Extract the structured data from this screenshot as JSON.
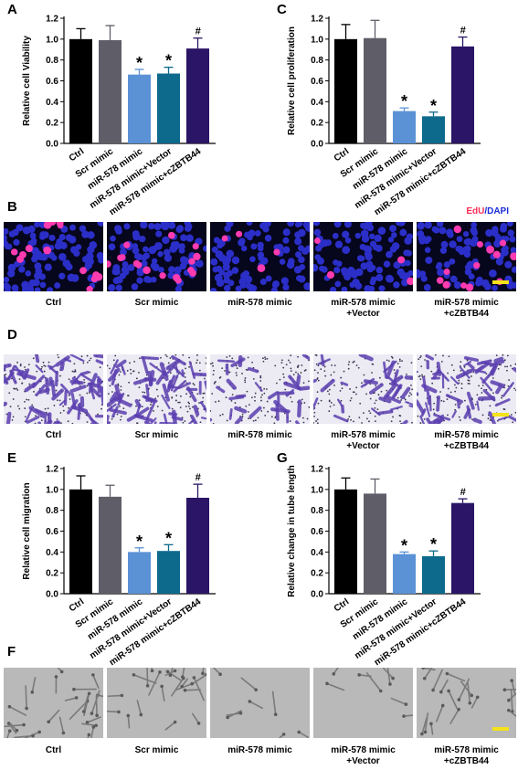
{
  "panels": {
    "A": {
      "letter": "A",
      "ylabel": "Relative cell Viability"
    },
    "C": {
      "letter": "C",
      "ylabel": "Relative cell proliferation"
    },
    "B": {
      "letter": "B",
      "legend_edu": "EdU",
      "legend_sep": "/",
      "legend_dapi": "DAPI"
    },
    "D": {
      "letter": "D"
    },
    "E": {
      "letter": "E",
      "ylabel": "Relative cell migration"
    },
    "G": {
      "letter": "G",
      "ylabel": "Relative change in tube length"
    },
    "F": {
      "letter": "F"
    }
  },
  "image_labels": [
    [
      "Ctrl"
    ],
    [
      "Scr mimic"
    ],
    [
      "miR-578 mimic"
    ],
    [
      "miR-578 mimic",
      "+Vector"
    ],
    [
      "miR-578 mimic",
      "+cZBTB44"
    ]
  ],
  "colors": {
    "ctrl": "#000000",
    "scr": "#5f5e68",
    "mir": "#5b92d6",
    "vector": "#0d6a8c",
    "czbtb": "#2a1566",
    "scalebar": "#f4e21a"
  },
  "chart_data": [
    {
      "id": "A",
      "type": "bar",
      "categories": [
        "Ctrl",
        "Scr mimic",
        "miR-578 mimic",
        "miR-578 mimic+Vector",
        "miR-578 mimic+cZBTB44"
      ],
      "values": [
        1.0,
        0.99,
        0.66,
        0.67,
        0.91
      ],
      "errors": [
        0.1,
        0.14,
        0.05,
        0.06,
        0.1
      ],
      "annotations": [
        "",
        "",
        "*",
        "*",
        "#"
      ],
      "ylabel": "Relative cell Viability",
      "ylim": [
        0,
        1.2
      ],
      "yticks": [
        "0.0",
        "0.2",
        "0.4",
        "0.6",
        "0.8",
        "1.0",
        "1.2"
      ]
    },
    {
      "id": "C",
      "type": "bar",
      "categories": [
        "Ctrl",
        "Scr mimic",
        "miR-578 mimic",
        "miR-578 mimic+Vector",
        "miR-578 mimic+cZBTB44"
      ],
      "values": [
        1.0,
        1.01,
        0.31,
        0.26,
        0.93
      ],
      "errors": [
        0.14,
        0.17,
        0.03,
        0.04,
        0.09
      ],
      "annotations": [
        "",
        "",
        "*",
        "*",
        "#"
      ],
      "ylabel": "Relative cell proliferation",
      "ylim": [
        0,
        1.2
      ],
      "yticks": [
        "0.0",
        "0.2",
        "0.4",
        "0.6",
        "0.8",
        "1.0",
        "1.2"
      ]
    },
    {
      "id": "E",
      "type": "bar",
      "categories": [
        "Ctrl",
        "Scr mimic",
        "miR-578 mimic",
        "miR-578 mimic+Vector",
        "miR-578 mimic+cZBTB44"
      ],
      "values": [
        1.0,
        0.93,
        0.4,
        0.41,
        0.92
      ],
      "errors": [
        0.13,
        0.11,
        0.04,
        0.06,
        0.13
      ],
      "annotations": [
        "",
        "",
        "*",
        "*",
        "#"
      ],
      "ylabel": "Relative cell migration",
      "ylim": [
        0,
        1.2
      ],
      "yticks": [
        "0.0",
        "0.2",
        "0.4",
        "0.6",
        "0.8",
        "1.0",
        "1.2"
      ]
    },
    {
      "id": "G",
      "type": "bar",
      "categories": [
        "Ctrl",
        "Scr mimic",
        "miR-578 mimic",
        "miR-578 mimic+Vector",
        "miR-578 mimic+cZBTB44"
      ],
      "values": [
        1.0,
        0.96,
        0.38,
        0.36,
        0.87
      ],
      "errors": [
        0.11,
        0.14,
        0.02,
        0.05,
        0.04
      ],
      "annotations": [
        "",
        "",
        "*",
        "*",
        "#"
      ],
      "ylabel": "Relative change in tube length",
      "ylim": [
        0,
        1.2
      ],
      "yticks": [
        "0.0",
        "0.2",
        "0.4",
        "0.6",
        "0.8",
        "1.0",
        "1.2"
      ]
    }
  ]
}
